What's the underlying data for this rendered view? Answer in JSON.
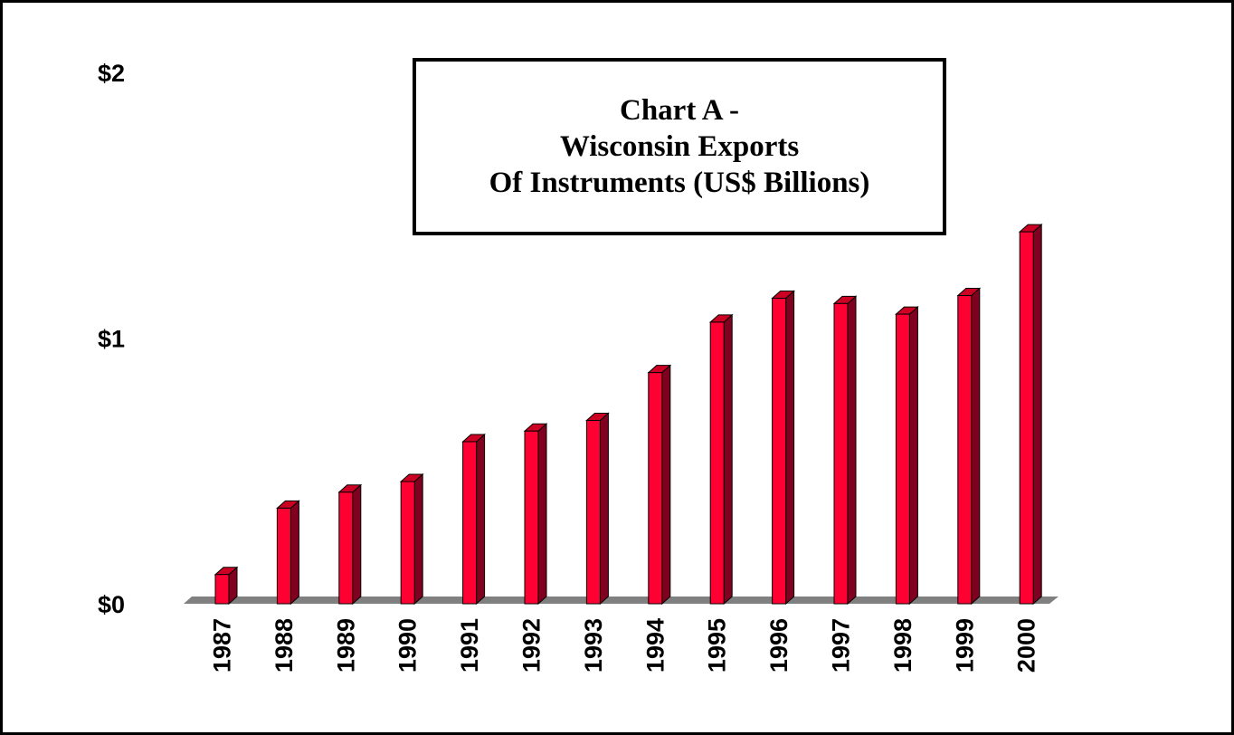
{
  "chart_data": {
    "type": "bar",
    "title_lines": [
      "Chart A -",
      "Wisconsin Exports",
      "Of Instruments (US$ Billions)"
    ],
    "categories": [
      "1987",
      "1988",
      "1989",
      "1990",
      "1991",
      "1992",
      "1993",
      "1994",
      "1995",
      "1996",
      "1997",
      "1998",
      "1999",
      "2000"
    ],
    "values": [
      0.11,
      0.36,
      0.42,
      0.46,
      0.61,
      0.65,
      0.69,
      0.87,
      1.06,
      1.15,
      1.13,
      1.09,
      1.16,
      1.4
    ],
    "ylim": [
      0,
      2
    ],
    "yticks": [
      {
        "value": 0,
        "label": "$0"
      },
      {
        "value": 1,
        "label": "$1"
      },
      {
        "value": 2,
        "label": "$2"
      }
    ],
    "xlabel": "",
    "ylabel": "",
    "grid": false,
    "legend": "none",
    "colors": {
      "bar_front": "#ff0033",
      "bar_side": "#800020",
      "bar_top": "#cc0022",
      "floor": "#808080"
    }
  }
}
